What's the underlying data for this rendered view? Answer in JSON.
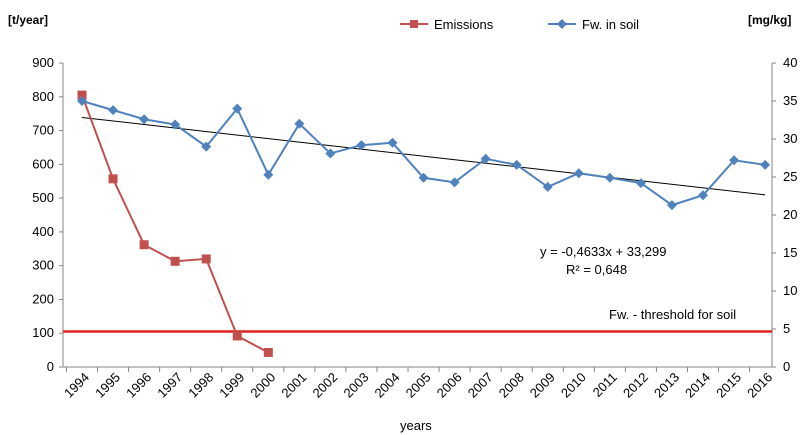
{
  "chart_data": {
    "type": "line",
    "x": [
      1994,
      1995,
      1996,
      1997,
      1998,
      1999,
      2000,
      2001,
      2002,
      2003,
      2004,
      2005,
      2006,
      2007,
      2008,
      2009,
      2010,
      2011,
      2012,
      2013,
      2014,
      2015,
      2016
    ],
    "x_tick_labels": [
      "1994",
      "1995",
      "1996",
      "1997",
      "1998",
      "1999",
      "2000",
      "2001",
      "2002",
      "2003",
      "2004",
      "2005",
      "2006",
      "2007",
      "2008",
      "2009",
      "2010",
      "2011",
      "2012",
      "2013",
      "2014",
      "2015",
      "2016"
    ],
    "xlabel": "years",
    "y_left_unit": "[t/year]",
    "y_right_unit": "[mg/kg]",
    "y_left_lim": [
      0,
      900
    ],
    "y_right_lim": [
      0,
      40
    ],
    "y_left_ticks": [
      "0",
      "100",
      "200",
      "300",
      "400",
      "500",
      "600",
      "700",
      "800",
      "900"
    ],
    "y_right_ticks": [
      "0",
      "5",
      "10",
      "15",
      "20",
      "25",
      "30",
      "35",
      "40"
    ],
    "series": [
      {
        "name": "Emissions",
        "axis": "left",
        "color": "#c0504d",
        "marker": "square",
        "x": [
          1994,
          1995,
          1996,
          1997,
          1998,
          1999,
          2000
        ],
        "values": [
          805,
          557,
          362,
          313,
          320,
          92,
          43
        ]
      },
      {
        "name": "Fw. in soil",
        "axis": "right",
        "color": "#4f81bd",
        "marker": "diamond",
        "x": [
          1994,
          1995,
          1996,
          1997,
          1998,
          1999,
          2000,
          2001,
          2002,
          2003,
          2004,
          2005,
          2006,
          2007,
          2008,
          2009,
          2010,
          2011,
          2012,
          2013,
          2014,
          2015,
          2016
        ],
        "values": [
          35.0,
          33.8,
          32.6,
          31.9,
          29.0,
          34.0,
          25.3,
          32.0,
          28.1,
          29.2,
          29.5,
          24.9,
          24.3,
          27.4,
          26.6,
          23.7,
          25.5,
          24.9,
          24.2,
          21.3,
          22.6,
          27.2,
          26.6
        ]
      }
    ],
    "trendline": {
      "axis": "right",
      "slope": -0.4633,
      "intercept": 33.299,
      "color": "#000000",
      "equation_label": "y = -0,4633x + 33,299",
      "r2_label": "R² = 0,648"
    },
    "threshold": {
      "axis": "left",
      "value": 105,
      "color": "#e02020",
      "label": "Fw. - threshold for soil"
    },
    "legend_position": "top-center",
    "grid": false
  }
}
